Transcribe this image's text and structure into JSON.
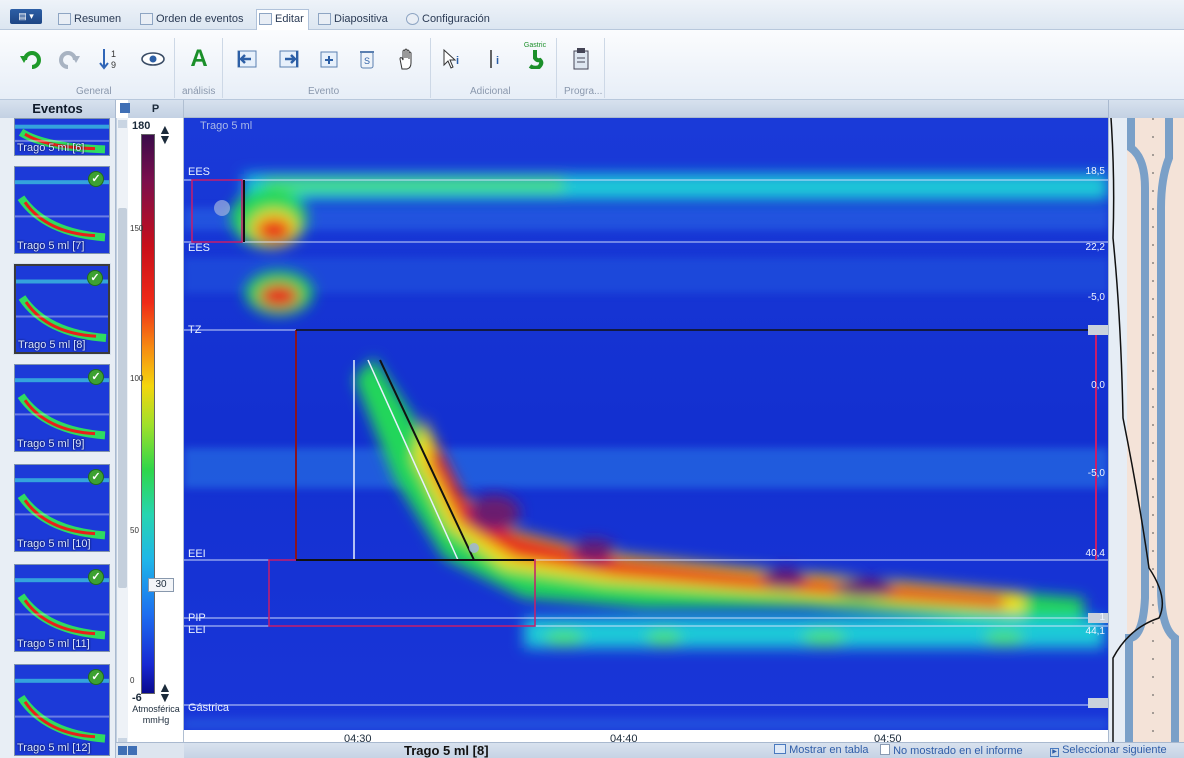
{
  "app": {
    "menu_button": "▤ ▾",
    "tabs": [
      {
        "label": "Resumen",
        "active": false
      },
      {
        "label": "Orden de eventos",
        "active": false
      },
      {
        "label": "Editar",
        "active": true
      },
      {
        "label": "Diapositiva",
        "active": false
      },
      {
        "label": "Configuración",
        "active": false
      }
    ]
  },
  "toolbar": {
    "groups": {
      "general": "General",
      "analysis": "análisis",
      "event": "Evento",
      "additional": "Adicional",
      "program": "Progra..."
    },
    "buttons": [
      {
        "icon": "undo-icon"
      },
      {
        "icon": "redo-icon"
      },
      {
        "icon": "sort-numeric-icon"
      },
      {
        "icon": "eye-icon"
      },
      {
        "icon": "text-a-icon",
        "glyph": "A"
      },
      {
        "icon": "move-left-icon"
      },
      {
        "icon": "move-right-icon"
      },
      {
        "icon": "add-event-icon"
      },
      {
        "icon": "delete-event-icon"
      },
      {
        "icon": "hand-pan-icon"
      },
      {
        "icon": "pointer-info-icon"
      },
      {
        "icon": "cursor-info-icon"
      },
      {
        "icon": "gastric-icon",
        "glyph": "Gastric"
      },
      {
        "icon": "clipboard-program-icon"
      }
    ],
    "colors": {
      "undo": "#1f9a2a",
      "text_a": "#1b8f2a"
    }
  },
  "events_panel": {
    "title": "Eventos",
    "items": [
      {
        "label": "Trago 5 ml [6]",
        "checked": false,
        "selected": false
      },
      {
        "label": "Trago 5 ml [7]",
        "checked": true,
        "selected": false
      },
      {
        "label": "Trago 5 ml [8]",
        "checked": true,
        "selected": true
      },
      {
        "label": "Trago 5 ml [9]",
        "checked": true,
        "selected": false
      },
      {
        "label": "Trago 5 ml [10]",
        "checked": true,
        "selected": false
      },
      {
        "label": "Trago 5 ml [11]",
        "checked": true,
        "selected": false
      },
      {
        "label": "Trago 5 ml [12]",
        "checked": true,
        "selected": false
      }
    ]
  },
  "scale": {
    "header": "P",
    "max": "180",
    "min": "-6",
    "ticks": [
      "150",
      "100",
      "50",
      "0"
    ],
    "marker": "30",
    "footer_line1": "Atmosférica",
    "footer_line2": "mmHg"
  },
  "plot": {
    "title": "Trago 5 ml",
    "channels": [
      "EES",
      "EES",
      "TZ",
      "EEI",
      "PIP",
      "EEI",
      "Gástrica"
    ],
    "right_values": [
      "18,5",
      "22,2",
      "-5,0",
      "0,0",
      "-5,0",
      "40,4",
      "1",
      "44,1"
    ],
    "x_ticks": [
      "04:30",
      "04:40",
      "04:50"
    ]
  },
  "status": {
    "title": "Trago 5 ml [8]",
    "show_table": "Mostrar en tabla",
    "not_in_report": "No mostrado en el informe",
    "select_next": "Seleccionar siguiente"
  }
}
